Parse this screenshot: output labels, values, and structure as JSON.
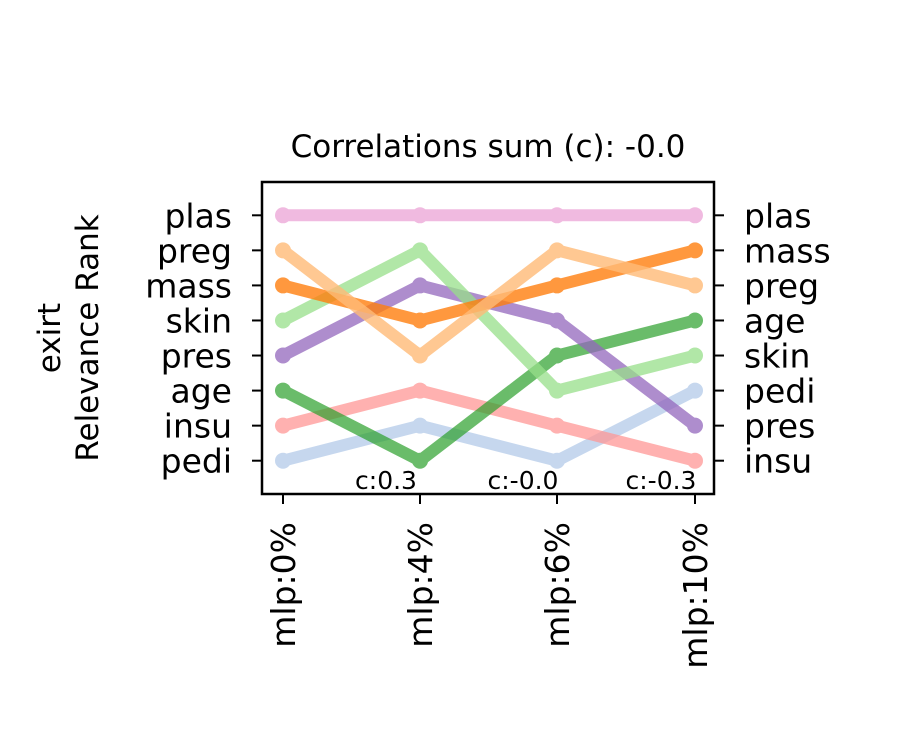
{
  "chart_data": {
    "type": "line",
    "title": "Correlations sum (c): -0.0",
    "ylabel_lines": [
      "exirt",
      "Relevance Rank"
    ],
    "categories": [
      "mlp:0%",
      "mlp:4%",
      "mlp:6%",
      "mlp:10%"
    ],
    "ylim": [
      0.05,
      8.95
    ],
    "grid": false,
    "left_tick_labels": [
      "pedi",
      "insu",
      "age",
      "pres",
      "skin",
      "mass",
      "preg",
      "plas"
    ],
    "right_tick_labels": [
      "insu",
      "pres",
      "pedi",
      "skin",
      "age",
      "preg",
      "mass",
      "plas"
    ],
    "annotations": [
      "c:0.3",
      "c:-0.0",
      "c:-0.3"
    ],
    "series": [
      {
        "feature": "plas",
        "color": "#e377c2",
        "opacity": 0.5,
        "values": [
          8,
          8,
          8,
          8
        ]
      },
      {
        "feature": "preg",
        "color": "#ffbb78",
        "opacity": 0.8,
        "values": [
          7,
          4,
          7,
          6
        ]
      },
      {
        "feature": "mass",
        "color": "#ff7f0e",
        "opacity": 0.8,
        "values": [
          6,
          5,
          6,
          7
        ]
      },
      {
        "feature": "skin",
        "color": "#98df8a",
        "opacity": 0.75,
        "values": [
          5,
          7,
          3,
          4
        ]
      },
      {
        "feature": "pres",
        "color": "#9467bd",
        "opacity": 0.75,
        "values": [
          4,
          6,
          5,
          2
        ]
      },
      {
        "feature": "age",
        "color": "#2ca02c",
        "opacity": 0.7,
        "values": [
          3,
          1,
          4,
          5
        ]
      },
      {
        "feature": "insu",
        "color": "#ff9896",
        "opacity": 0.75,
        "values": [
          2,
          3,
          2,
          1
        ]
      },
      {
        "feature": "pedi",
        "color": "#aec7e8",
        "opacity": 0.7,
        "values": [
          1,
          2,
          1,
          3
        ]
      }
    ]
  }
}
